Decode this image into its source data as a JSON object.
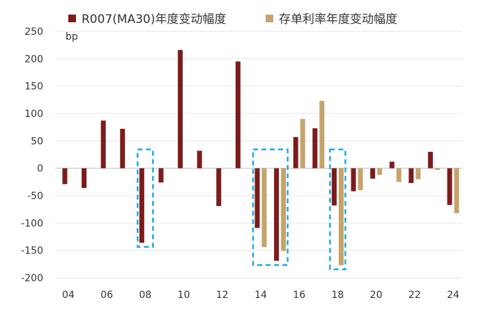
{
  "chart_data": {
    "type": "bar",
    "ylabel": "bp",
    "ylim": [
      -200,
      250
    ],
    "yticks": [
      250,
      200,
      150,
      100,
      50,
      0,
      -50,
      -100,
      -150,
      -200
    ],
    "categories": [
      "04",
      "05",
      "06",
      "07",
      "08",
      "09",
      "10",
      "11",
      "12",
      "13",
      "14",
      "15",
      "16",
      "17",
      "18",
      "19",
      "20",
      "21",
      "22",
      "23",
      "24"
    ],
    "xtick_labels": [
      "04",
      "06",
      "08",
      "10",
      "12",
      "14",
      "16",
      "18",
      "20",
      "22",
      "24"
    ],
    "grid": true,
    "legend_position": "top",
    "series": [
      {
        "name": "R007(MA30)年度变动幅度",
        "color": "#7B1C1C",
        "values": [
          -29,
          -36,
          87,
          72,
          -136,
          -26,
          216,
          32,
          -69,
          195,
          -109,
          -169,
          57,
          73,
          -68,
          -42,
          -19,
          12,
          -27,
          30,
          -67
        ]
      },
      {
        "name": "存单利率年度变动幅度",
        "color": "#C4A46B",
        "values": [
          null,
          null,
          null,
          null,
          null,
          null,
          null,
          null,
          null,
          null,
          -144,
          -151,
          90,
          123,
          -177,
          -40,
          -12,
          -25,
          -20,
          -3,
          -82
        ]
      }
    ],
    "highlight_groups": [
      {
        "from": "08",
        "to": "08"
      },
      {
        "from": "14",
        "to": "15"
      },
      {
        "from": "18",
        "to": "18"
      }
    ]
  }
}
